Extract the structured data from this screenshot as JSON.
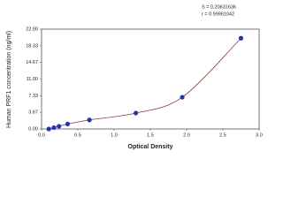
{
  "chart_data": {
    "type": "scatter",
    "x_label": "Optical Density",
    "y_label": "Human PRF1 concentration (ng/ml)",
    "annotations": [
      "S = 0.20631636",
      "r = 0.99961042"
    ],
    "x": [
      0.1,
      0.17,
      0.24,
      0.36,
      0.66,
      1.3,
      1.94,
      2.75
    ],
    "series": [
      {
        "color": "#2233aa",
        "curve_color": "#993333",
        "values": [
          0,
          0.3,
          0.6,
          1.1,
          2.0,
          3.5,
          7.0,
          20.0
        ]
      }
    ],
    "xlim": [
      0,
      3
    ],
    "xticks": [
      {
        "value": 0,
        "label": "0.0"
      },
      0.5,
      {
        "value": 1,
        "label": "1.0"
      },
      1.5,
      {
        "value": 2,
        "label": "2.0"
      },
      2.5,
      {
        "value": 3,
        "label": "3.0"
      }
    ],
    "ylim": [
      0,
      22
    ],
    "yticks": [
      {
        "value": 0,
        "label": "0.00"
      },
      {
        "value": 3.67,
        "label": "3.67"
      },
      {
        "value": 7.33,
        "label": "7.33"
      },
      {
        "value": 11,
        "label": "11.00"
      },
      {
        "value": 14.67,
        "label": "14.67"
      },
      {
        "value": 18.33,
        "label": "18.33"
      },
      {
        "value": 22,
        "label": "22.00"
      }
    ]
  }
}
